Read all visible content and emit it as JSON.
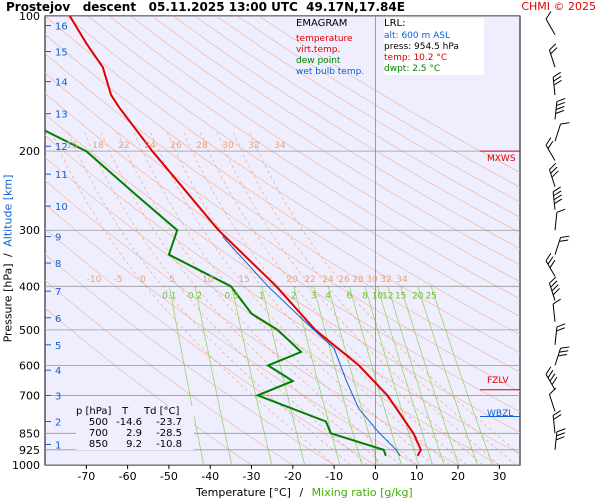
{
  "header": {
    "title": "Prostejov   descent   05.11.2025 13:00 UTC  49.17N,17.84E",
    "copyright": "CHMI © 2025"
  },
  "legend": {
    "title": "EMAGRAM",
    "items": [
      {
        "label": "temperature",
        "color": "#e00000"
      },
      {
        "label": "virt.temp.",
        "color": "#e00000"
      },
      {
        "label": "dew point",
        "color": "#008000"
      },
      {
        "label": "wet bulb temp.",
        "color": "#1060d0"
      }
    ]
  },
  "lrl": {
    "title": "LRL:",
    "alt": "alt: 600 m ASL",
    "press": "press: 954.5 hPa",
    "temp": "temp: 10.2 °C",
    "dwpt": "dwpt: 2.5 °C"
  },
  "table": {
    "headers": [
      "p [hPa]",
      "T",
      "Td [°C]"
    ],
    "rows": [
      [
        "500",
        "-14.6",
        "-23.7"
      ],
      [
        "700",
        "2.9",
        "-28.5"
      ],
      [
        "850",
        "9.2",
        "-10.8"
      ]
    ]
  },
  "levels": {
    "mxws": "MXWS",
    "fzlv": "FZLV",
    "wbzl": "WBZL"
  },
  "chart_data": {
    "type": "line",
    "title": "Prostejov descent 05.11.2025 13:00 UTC 49.17N,17.84E",
    "xlabel": "Temperature [°C]",
    "xlabel_sep": "/",
    "xlabel2": "Mixing ratio [g/kg]",
    "ylabel": "Pressure [hPa]",
    "ylabel_sep": "/",
    "ylabel2": "Altitude [km]",
    "xlim": [
      -80,
      35
    ],
    "ylim": [
      1000,
      100
    ],
    "y_scale": "log",
    "x_ticks": [
      "-70",
      "-60",
      "-50",
      "-40",
      "-30",
      "-20",
      "-10",
      "0",
      "10",
      "20",
      "30"
    ],
    "p_ticks": [
      "100",
      "200",
      "300",
      "400",
      "500",
      "600",
      "700",
      "850",
      "925",
      "1000"
    ],
    "alt_ticks": [
      "1",
      "2",
      "3",
      "4",
      "5",
      "6",
      "7",
      "8",
      "9",
      "10",
      "11",
      "12",
      "13",
      "14",
      "15",
      "16"
    ],
    "mixing_ratio_labels": [
      "0.1",
      "0.2",
      "0.5",
      "1",
      "2",
      "3",
      "4",
      "6",
      "8",
      "10",
      "12",
      "15",
      "20",
      "25"
    ],
    "theta_labels_upper": [
      "15",
      "18",
      "22",
      "24",
      "26",
      "28",
      "30",
      "32",
      "34"
    ],
    "theta_labels_lower": [
      "-10",
      "-5",
      "0",
      "5",
      "10",
      "15",
      "20",
      "22",
      "24",
      "26",
      "28",
      "30",
      "32",
      "34"
    ],
    "series": [
      {
        "name": "temperature",
        "color": "#e00000",
        "points": [
          [
            10.2,
            954
          ],
          [
            11,
            925
          ],
          [
            9.2,
            850
          ],
          [
            2.9,
            700
          ],
          [
            -4,
            600
          ],
          [
            -14.6,
            500
          ],
          [
            -24,
            400
          ],
          [
            -38,
            300
          ],
          [
            -54,
            200
          ],
          [
            -62,
            160
          ],
          [
            -64,
            150
          ],
          [
            -66,
            130
          ],
          [
            -70,
            115
          ],
          [
            -74,
            100
          ]
        ]
      },
      {
        "name": "dew point",
        "color": "#008000",
        "points": [
          [
            2.5,
            954
          ],
          [
            2,
            925
          ],
          [
            -10.8,
            850
          ],
          [
            -12,
            800
          ],
          [
            -25,
            720
          ],
          [
            -28.5,
            700
          ],
          [
            -20,
            650
          ],
          [
            -26,
            600
          ],
          [
            -18,
            560
          ],
          [
            -23.7,
            500
          ],
          [
            -30,
            460
          ],
          [
            -35,
            400
          ],
          [
            -50,
            340
          ],
          [
            -48,
            300
          ],
          [
            -58,
            250
          ],
          [
            -70,
            200
          ],
          [
            -80,
            180
          ]
        ]
      },
      {
        "name": "wet bulb temp.",
        "color": "#1060d0",
        "points": [
          [
            6,
            954
          ],
          [
            5,
            925
          ],
          [
            1,
            850
          ],
          [
            -4,
            750
          ],
          [
            -7,
            650
          ],
          [
            -10,
            550
          ],
          [
            -17,
            480
          ],
          [
            -26,
            400
          ],
          [
            -37,
            310
          ]
        ]
      }
    ]
  }
}
